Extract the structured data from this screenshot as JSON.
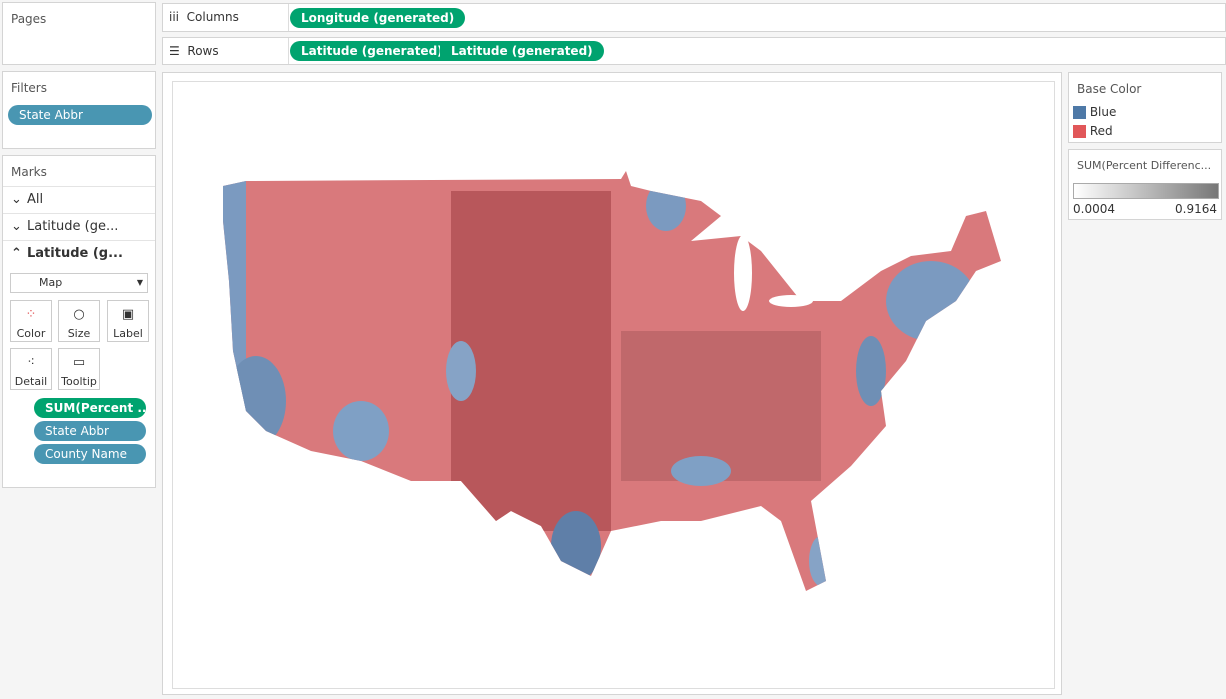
{
  "pages": {
    "title": "Pages"
  },
  "filters": {
    "title": "Filters",
    "pills": [
      "State Abbr"
    ]
  },
  "marks": {
    "title": "Marks",
    "layers": [
      "All",
      "Latitude (ge...",
      "Latitude (g..."
    ],
    "mark_type": "Map",
    "buttons": [
      "Color",
      "Size",
      "Label",
      "Detail",
      "Tooltip"
    ],
    "fields": [
      "SUM(Percent ..",
      "State Abbr",
      "County Name"
    ]
  },
  "columns": {
    "label": "Columns",
    "pills": [
      "Longitude (generated)"
    ]
  },
  "rows": {
    "label": "Rows",
    "pills": [
      "Latitude (generated)",
      "Latitude (generated)"
    ]
  },
  "legend_color": {
    "title": "Base Color",
    "items": [
      {
        "label": "Blue",
        "color": "#4e79a7"
      },
      {
        "label": "Red",
        "color": "#e15759"
      }
    ]
  },
  "legend_gradient": {
    "title": "SUM(Percent Differenc...",
    "min": 0.0004,
    "max": 0.9164
  }
}
